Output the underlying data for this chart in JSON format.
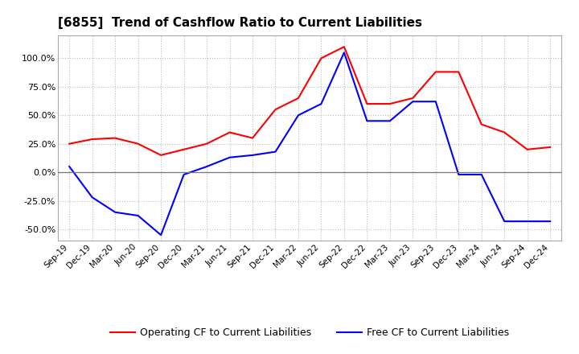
{
  "title": "[6855]  Trend of Cashflow Ratio to Current Liabilities",
  "x_labels": [
    "Sep-19",
    "Dec-19",
    "Mar-20",
    "Jun-20",
    "Sep-20",
    "Dec-20",
    "Mar-21",
    "Jun-21",
    "Sep-21",
    "Dec-21",
    "Mar-22",
    "Jun-22",
    "Sep-22",
    "Dec-22",
    "Mar-23",
    "Jun-23",
    "Sep-23",
    "Dec-23",
    "Mar-24",
    "Jun-24",
    "Sep-24",
    "Dec-24"
  ],
  "operating_cf": [
    0.25,
    0.29,
    0.3,
    0.25,
    0.15,
    0.2,
    0.25,
    0.35,
    0.3,
    0.55,
    0.65,
    1.0,
    1.1,
    0.6,
    0.6,
    0.65,
    0.88,
    0.88,
    0.42,
    0.35,
    0.2,
    0.22
  ],
  "free_cf": [
    0.05,
    -0.22,
    -0.35,
    -0.38,
    -0.55,
    -0.02,
    0.05,
    0.13,
    0.15,
    0.18,
    0.5,
    0.6,
    1.05,
    0.45,
    0.45,
    0.62,
    0.62,
    -0.02,
    -0.02,
    -0.43,
    -0.43,
    -0.43
  ],
  "operating_color": "#ff0000",
  "free_color": "#0000ff",
  "ylim": [
    -0.6,
    1.2
  ],
  "yticks": [
    -0.5,
    -0.25,
    0.0,
    0.25,
    0.5,
    0.75,
    1.0
  ],
  "background_color": "#ffffff",
  "grid_color": "#bbbbbb",
  "legend_labels": [
    "Operating CF to Current Liabilities",
    "Free CF to Current Liabilities"
  ]
}
